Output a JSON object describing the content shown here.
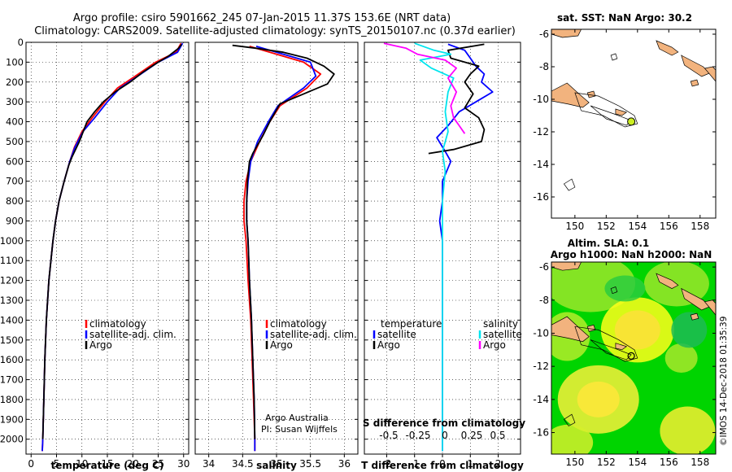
{
  "title": {
    "line1": "Argo profile: csiro 5901662_245 07-Jan-2015 11.37S 153.6E (NRT data)",
    "line2": "Climatology: CARS2009. Satellite-adjusted climatology: synTS_20150107.nc (0.37d earlier)"
  },
  "colors": {
    "climatology": "#ff0000",
    "satellite": "#0000ff",
    "argo": "#000000",
    "sat_salinity": "#00e5ee",
    "argo_salinity": "#ff00ff",
    "land": "#f2b37e"
  },
  "chart_data": [
    {
      "type": "line",
      "name": "temperature-panel",
      "xlabel": "temperature (deg C)",
      "xlim": [
        -1,
        31
      ],
      "ylim": [
        0,
        2075
      ],
      "xticks": [
        0,
        5,
        10,
        15,
        20,
        25,
        30
      ],
      "yticks": [
        0,
        100,
        200,
        300,
        400,
        500,
        600,
        700,
        800,
        900,
        1000,
        1100,
        1200,
        1300,
        1400,
        1500,
        1600,
        1700,
        1800,
        1900,
        2000
      ],
      "legend": [
        "climatology",
        "satellite-adj. clim.",
        "Argo"
      ],
      "series": [
        {
          "name": "climatology",
          "color": "#ff0000",
          "points": [
            [
              29.5,
              5
            ],
            [
              28.5,
              50
            ],
            [
              24.5,
              100
            ],
            [
              20.5,
              170
            ],
            [
              17.0,
              230
            ],
            [
              14.5,
              300
            ],
            [
              12.0,
              380
            ],
            [
              10.0,
              450
            ],
            [
              8.5,
              530
            ],
            [
              7.6,
              600
            ],
            [
              6.5,
              700
            ],
            [
              5.5,
              800
            ],
            [
              4.8,
              900
            ],
            [
              4.3,
              1000
            ],
            [
              3.5,
              1200
            ],
            [
              3.0,
              1400
            ],
            [
              2.7,
              1600
            ],
            [
              2.5,
              1800
            ],
            [
              2.3,
              2000
            ],
            [
              2.2,
              2060
            ]
          ]
        },
        {
          "name": "satellite-adj. clim.",
          "color": "#0000ff",
          "points": [
            [
              29.8,
              5
            ],
            [
              28.8,
              50
            ],
            [
              25.0,
              100
            ],
            [
              21.0,
              170
            ],
            [
              17.5,
              230
            ],
            [
              15.0,
              300
            ],
            [
              12.5,
              380
            ],
            [
              10.2,
              450
            ],
            [
              8.6,
              530
            ],
            [
              7.6,
              600
            ],
            [
              6.5,
              700
            ],
            [
              5.5,
              800
            ],
            [
              4.8,
              900
            ],
            [
              4.3,
              1000
            ],
            [
              3.5,
              1200
            ],
            [
              3.0,
              1400
            ],
            [
              2.7,
              1600
            ],
            [
              2.5,
              1800
            ],
            [
              2.3,
              2000
            ],
            [
              2.2,
              2060
            ]
          ]
        },
        {
          "name": "Argo",
          "color": "#000000",
          "points": [
            [
              29.6,
              10
            ],
            [
              29.0,
              30
            ],
            [
              27.0,
              70
            ],
            [
              25.0,
              100
            ],
            [
              22.0,
              150
            ],
            [
              19.5,
              200
            ],
            [
              16.5,
              250
            ],
            [
              14.2,
              300
            ],
            [
              12.5,
              350
            ],
            [
              11.0,
              400
            ],
            [
              9.5,
              500
            ],
            [
              8.0,
              580
            ],
            [
              7.4,
              620
            ],
            [
              6.5,
              700
            ],
            [
              5.5,
              800
            ],
            [
              4.8,
              900
            ],
            [
              4.3,
              1000
            ],
            [
              3.5,
              1200
            ],
            [
              3.0,
              1400
            ],
            [
              2.7,
              1600
            ],
            [
              2.5,
              1800
            ],
            [
              2.3,
              2000
            ]
          ]
        }
      ]
    },
    {
      "type": "line",
      "name": "salinity-panel",
      "xlabel": "salinity",
      "xlim": [
        33.8,
        36.2
      ],
      "ylim": [
        0,
        2075
      ],
      "xticks": [
        34,
        34.5,
        35,
        35.5,
        36
      ],
      "legend": [
        "climatology",
        "satellite-adj. clim.",
        "Argo"
      ],
      "annotation": [
        "Argo Australia",
        "PI: Susan Wijffels"
      ],
      "series": [
        {
          "name": "climatology",
          "color": "#ff0000",
          "points": [
            [
              34.6,
              20
            ],
            [
              35.0,
              60
            ],
            [
              35.4,
              100
            ],
            [
              35.65,
              160
            ],
            [
              35.45,
              230
            ],
            [
              35.05,
              320
            ],
            [
              34.9,
              400
            ],
            [
              34.75,
              500
            ],
            [
              34.62,
              600
            ],
            [
              34.55,
              700
            ],
            [
              34.52,
              800
            ],
            [
              34.52,
              900
            ],
            [
              34.55,
              1000
            ],
            [
              34.58,
              1200
            ],
            [
              34.62,
              1400
            ],
            [
              34.64,
              1600
            ],
            [
              34.66,
              1800
            ],
            [
              34.68,
              2000
            ],
            [
              34.68,
              2060
            ]
          ]
        },
        {
          "name": "satellite-adj. clim.",
          "color": "#0000ff",
          "points": [
            [
              34.7,
              20
            ],
            [
              35.1,
              60
            ],
            [
              35.5,
              100
            ],
            [
              35.58,
              170
            ],
            [
              35.4,
              230
            ],
            [
              35.02,
              320
            ],
            [
              34.88,
              400
            ],
            [
              34.72,
              500
            ],
            [
              34.62,
              600
            ],
            [
              34.58,
              700
            ],
            [
              34.56,
              800
            ],
            [
              34.56,
              900
            ],
            [
              34.58,
              1000
            ],
            [
              34.6,
              1200
            ],
            [
              34.63,
              1400
            ],
            [
              34.65,
              1600
            ],
            [
              34.67,
              1800
            ],
            [
              34.68,
              2000
            ],
            [
              34.68,
              2060
            ]
          ]
        },
        {
          "name": "Argo",
          "color": "#000000",
          "points": [
            [
              34.35,
              15
            ],
            [
              34.7,
              30
            ],
            [
              35.1,
              50
            ],
            [
              35.45,
              80
            ],
            [
              35.7,
              120
            ],
            [
              35.85,
              160
            ],
            [
              35.75,
              210
            ],
            [
              35.4,
              260
            ],
            [
              35.05,
              310
            ],
            [
              34.9,
              400
            ],
            [
              34.8,
              470
            ],
            [
              34.65,
              560
            ],
            [
              34.6,
              600
            ],
            [
              34.57,
              700
            ],
            [
              34.56,
              800
            ],
            [
              34.56,
              900
            ],
            [
              34.58,
              1000
            ],
            [
              34.6,
              1200
            ],
            [
              34.63,
              1400
            ],
            [
              34.65,
              1600
            ],
            [
              34.67,
              1800
            ],
            [
              34.68,
              2000
            ]
          ]
        }
      ]
    },
    {
      "type": "line",
      "name": "difference-panel",
      "xlabel": "T difference from climatology",
      "xlabel_top": "S difference from climatology",
      "xlim": [
        -2.8,
        2.8
      ],
      "ylim": [
        0,
        2075
      ],
      "xticks": [
        -2,
        -1,
        0,
        1,
        2
      ],
      "xticks_s": [
        "-0.5",
        "-0.25",
        "0",
        "0.25",
        "0.5"
      ],
      "legend_left": [
        "temperature",
        "satellite",
        "Argo"
      ],
      "legend_right": [
        "salinity",
        "satellite",
        "Argo"
      ],
      "series": [
        {
          "name": "T satellite",
          "color": "#0000ff",
          "points": [
            [
              0.2,
              10
            ],
            [
              0.8,
              40
            ],
            [
              1.0,
              80
            ],
            [
              1.2,
              120
            ],
            [
              1.5,
              160
            ],
            [
              1.4,
              200
            ],
            [
              1.8,
              250
            ],
            [
              1.2,
              300
            ],
            [
              0.6,
              350
            ],
            [
              0.2,
              420
            ],
            [
              -0.2,
              480
            ],
            [
              0.1,
              550
            ],
            [
              0.3,
              600
            ],
            [
              0.0,
              700
            ],
            [
              0.0,
              800
            ],
            [
              -0.1,
              900
            ],
            [
              0.0,
              1000
            ],
            [
              0.0,
              1200
            ],
            [
              0.0,
              1400
            ],
            [
              0.0,
              1600
            ],
            [
              0.0,
              1800
            ],
            [
              0.0,
              2000
            ],
            [
              0.0,
              2060
            ]
          ]
        },
        {
          "name": "T Argo",
          "color": "#000000",
          "points": [
            [
              1.5,
              10
            ],
            [
              0.2,
              40
            ],
            [
              0.3,
              80
            ],
            [
              1.3,
              120
            ],
            [
              1.0,
              160
            ],
            [
              0.8,
              200
            ],
            [
              1.1,
              260
            ],
            [
              0.8,
              330
            ],
            [
              1.3,
              380
            ],
            [
              1.5,
              440
            ],
            [
              1.4,
              500
            ],
            [
              0.4,
              540
            ],
            [
              -0.5,
              560
            ]
          ]
        },
        {
          "name": "S satellite",
          "color": "#00e5ee",
          "points": [
            [
              -1.0,
              5
            ],
            [
              -0.3,
              40
            ],
            [
              0.3,
              60
            ],
            [
              -0.8,
              90
            ],
            [
              -0.4,
              130
            ],
            [
              0.4,
              180
            ],
            [
              0.2,
              250
            ],
            [
              0.1,
              350
            ],
            [
              0.2,
              450
            ],
            [
              0.0,
              550
            ],
            [
              0.1,
              650
            ],
            [
              0.0,
              800
            ],
            [
              0.0,
              1000
            ],
            [
              0.0,
              1300
            ],
            [
              0.0,
              1600
            ],
            [
              0.0,
              1900
            ],
            [
              0.0,
              2060
            ]
          ]
        },
        {
          "name": "S Argo",
          "color": "#ff00ff",
          "points": [
            [
              -2.1,
              5
            ],
            [
              -1.3,
              30
            ],
            [
              -0.9,
              60
            ],
            [
              0.1,
              90
            ],
            [
              0.5,
              130
            ],
            [
              0.2,
              180
            ],
            [
              0.5,
              250
            ],
            [
              0.3,
              320
            ],
            [
              0.4,
              380
            ],
            [
              0.6,
              420
            ],
            [
              0.8,
              460
            ]
          ]
        }
      ]
    },
    {
      "type": "map",
      "name": "sst-map",
      "title": "sat. SST: NaN Argo: 30.2",
      "xlim": [
        148.5,
        159
      ],
      "ylim": [
        -17.3,
        -5.7
      ],
      "xticks": [
        150,
        152,
        154,
        156,
        158
      ],
      "yticks": [
        -6,
        -8,
        -10,
        -12,
        -14,
        -16
      ],
      "argo_position": [
        153.6,
        -11.37
      ]
    },
    {
      "type": "heatmap",
      "name": "sla-map",
      "title_line1": "Altim. SLA: 0.1",
      "title_line2": "Argo h1000: NaN h2000: NaN",
      "xlim": [
        148.5,
        159
      ],
      "ylim": [
        -17.3,
        -5.7
      ],
      "xticks": [
        150,
        152,
        154,
        156,
        158
      ],
      "yticks": [
        -6,
        -8,
        -10,
        -12,
        -14,
        -16
      ],
      "argo_position": [
        153.6,
        -11.37
      ]
    }
  ],
  "credit": "©IMOS 14-Dec-2018 01:35:39"
}
